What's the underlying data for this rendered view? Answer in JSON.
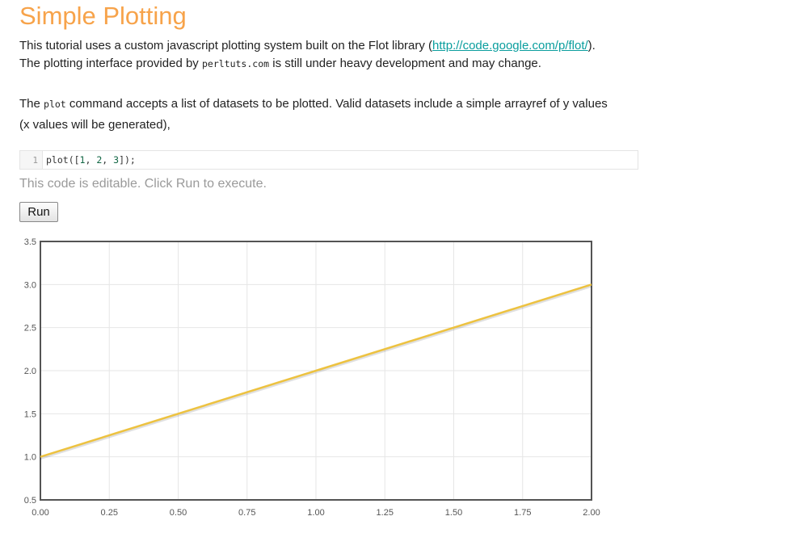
{
  "page": {
    "title": "Simple Plotting",
    "intro": {
      "text_before_link": "This tutorial uses a custom javascript plotting system built on the Flot library (",
      "link_text": "http://code.google.com/p/flot/",
      "text_after_link": ").",
      "line2_before_code": "The plotting interface provided by ",
      "line2_code": "perltuts.com",
      "line2_after_code": " is still under heavy development and may change."
    },
    "para2": {
      "before_code": "The ",
      "code": "plot",
      "after_code": " command accepts a list of datasets to be plotted. Valid datasets include a simple arrayref of y values",
      "line2": "(x values will be generated),"
    }
  },
  "editor": {
    "line_number": "1",
    "code_prefix": "plot([",
    "code_n1": "1",
    "code_sep1": ", ",
    "code_n2": "2",
    "code_sep2": ", ",
    "code_n3": "3",
    "code_suffix": "]);"
  },
  "hint": "This code is editable. Click Run to execute.",
  "run_button": {
    "label": "Run"
  },
  "chart_data": {
    "type": "line",
    "x": [
      0,
      1,
      2
    ],
    "series": [
      {
        "values": [
          1,
          2,
          3
        ],
        "color": "#edc240"
      }
    ],
    "xlim": [
      0,
      2
    ],
    "ylim": [
      0.5,
      3.5
    ],
    "x_ticks": [
      "0.00",
      "0.25",
      "0.50",
      "0.75",
      "1.00",
      "1.25",
      "1.50",
      "1.75",
      "2.00"
    ],
    "y_ticks": [
      "0.5",
      "1.0",
      "1.5",
      "2.0",
      "2.5",
      "3.0",
      "3.5"
    ],
    "grid": true,
    "title": "",
    "xlabel": "",
    "ylabel": ""
  }
}
